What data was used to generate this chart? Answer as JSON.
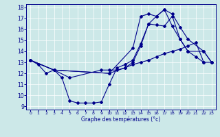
{
  "xlabel": "Graphe des températures (°c)",
  "background_color": "#cce8e8",
  "line_color": "#00008b",
  "xlim": [
    -0.5,
    23.5
  ],
  "ylim": [
    8.7,
    18.3
  ],
  "xticks": [
    0,
    1,
    2,
    3,
    4,
    5,
    6,
    7,
    8,
    9,
    10,
    11,
    12,
    13,
    14,
    15,
    16,
    17,
    18,
    19,
    20,
    21,
    22,
    23
  ],
  "yticks": [
    9,
    10,
    11,
    12,
    13,
    14,
    15,
    16,
    17,
    18
  ],
  "line1_x": [
    0,
    1,
    2,
    3,
    4,
    5,
    6,
    7,
    8,
    9,
    10,
    11,
    12,
    13,
    14,
    15,
    16,
    17,
    18,
    19,
    20,
    21,
    22
  ],
  "line1_y": [
    13.2,
    12.8,
    12.0,
    12.3,
    11.6,
    9.5,
    9.3,
    9.3,
    9.3,
    9.4,
    11.0,
    12.5,
    12.8,
    13.2,
    14.7,
    16.5,
    17.2,
    17.8,
    16.3,
    15.1,
    14.0,
    13.5,
    13.0
  ],
  "line2_x": [
    0,
    3,
    10,
    13,
    14,
    15,
    16,
    17,
    18,
    19,
    20,
    22,
    23
  ],
  "line2_y": [
    13.2,
    12.3,
    12.0,
    14.3,
    17.2,
    17.4,
    17.2,
    17.8,
    17.4,
    16.2,
    15.1,
    14.0,
    13.0
  ],
  "line3_x": [
    0,
    3,
    10,
    12,
    13,
    14,
    15,
    16,
    17,
    18,
    19,
    20,
    22,
    23
  ],
  "line3_y": [
    13.2,
    12.3,
    12.0,
    12.5,
    13.0,
    14.5,
    16.5,
    16.4,
    16.3,
    17.2,
    15.1,
    14.0,
    14.0,
    13.0
  ],
  "line4_x": [
    0,
    3,
    5,
    9,
    10,
    11,
    12,
    13,
    14,
    15,
    16,
    17,
    18,
    19,
    20,
    21,
    22,
    23
  ],
  "line4_y": [
    13.2,
    12.3,
    11.6,
    12.3,
    12.3,
    12.3,
    12.5,
    12.8,
    13.0,
    13.2,
    13.5,
    13.8,
    14.0,
    14.2,
    14.5,
    14.8,
    13.0,
    13.0
  ]
}
